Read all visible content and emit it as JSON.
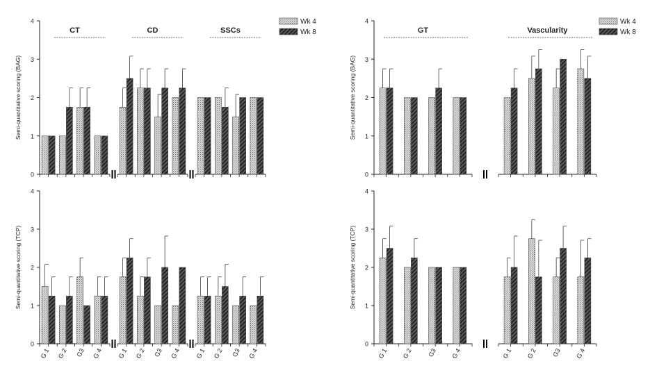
{
  "chart_data": [
    {
      "type": "bar",
      "ylabel": "Semi-quantitative scoring (BAG)",
      "ylim": [
        0,
        4
      ],
      "yticks": [
        "0",
        "1",
        "2",
        "3",
        "4"
      ],
      "groups": [
        {
          "label": "CT",
          "categories": [
            "G 1",
            "G 2",
            "G3",
            "G 4"
          ],
          "wk4": [
            1,
            1,
            1.75,
            1
          ],
          "wk4_err": [
            0,
            0,
            0.5,
            0
          ],
          "wk8": [
            1,
            1.75,
            1.75,
            1
          ],
          "wk8_err": [
            0,
            0.5,
            0.5,
            0
          ]
        },
        {
          "label": "CD",
          "categories": [
            "G 1",
            "G 2",
            "G3",
            "G 4"
          ],
          "wk4": [
            1.75,
            2.25,
            1.5,
            2
          ],
          "wk4_err": [
            0.5,
            0.5,
            0.58,
            0
          ],
          "wk8": [
            2.5,
            2.25,
            2.25,
            2.25
          ],
          "wk8_err": [
            0.58,
            0.5,
            0.5,
            0.5
          ]
        },
        {
          "label": "SSCs",
          "categories": [
            "G 1",
            "G 2",
            "G3",
            "G 4"
          ],
          "wk4": [
            2,
            2,
            1.5,
            2
          ],
          "wk4_err": [
            0,
            0,
            0.58,
            0
          ],
          "wk8": [
            2,
            1.75,
            2,
            2
          ],
          "wk8_err": [
            0,
            0.5,
            0,
            0
          ]
        }
      ],
      "legend": [
        "Wk 4",
        "Wk 8"
      ],
      "legend_position": "top-right"
    },
    {
      "type": "bar",
      "ylabel": "Semi-quantitative scoring (BAG)",
      "ylim": [
        0,
        4
      ],
      "yticks": [
        "0",
        "1",
        "2",
        "3",
        "4"
      ],
      "groups": [
        {
          "label": "GT",
          "categories": [
            "G 1",
            "G 2",
            "G3",
            "G 4"
          ],
          "wk4": [
            2.25,
            2,
            2,
            2
          ],
          "wk4_err": [
            0.5,
            0,
            0,
            0
          ],
          "wk8": [
            2.25,
            2,
            2.25,
            2
          ],
          "wk8_err": [
            0.5,
            0,
            0.5,
            0
          ]
        },
        {
          "label": "Vascularity",
          "categories": [
            "G 1",
            "G 2",
            "G3",
            "G 4"
          ],
          "wk4": [
            2,
            2.5,
            2.25,
            2.75
          ],
          "wk4_err": [
            0,
            0.58,
            0.5,
            0.5
          ],
          "wk8": [
            2.25,
            2.75,
            3,
            2.5
          ],
          "wk8_err": [
            0.5,
            0.5,
            0,
            0.58
          ]
        }
      ],
      "legend": [
        "Wk 4",
        "Wk 8"
      ],
      "legend_position": "top-right"
    },
    {
      "type": "bar",
      "ylabel": "Semi-quantitative scoring (TCP)",
      "ylim": [
        0,
        4
      ],
      "yticks": [
        "0",
        "1",
        "2",
        "3",
        "4"
      ],
      "groups": [
        {
          "label": "",
          "categories": [
            "G 1",
            "G 2",
            "G3",
            "G 4"
          ],
          "wk4": [
            1.5,
            1,
            1.75,
            1.25
          ],
          "wk4_err": [
            0.58,
            0,
            0.5,
            0.5
          ],
          "wk8": [
            1.25,
            1.25,
            1,
            1.25
          ],
          "wk8_err": [
            0.5,
            0.5,
            0,
            0.5
          ]
        },
        {
          "label": "",
          "categories": [
            "G 1",
            "G 2",
            "G3",
            "G 4"
          ],
          "wk4": [
            1.75,
            1.25,
            1,
            1
          ],
          "wk4_err": [
            0.5,
            0.5,
            0,
            0
          ],
          "wk8": [
            2.25,
            1.75,
            2,
            2
          ],
          "wk8_err": [
            0.5,
            0.5,
            0.82,
            0
          ]
        },
        {
          "label": "",
          "categories": [
            "G 1",
            "G 2",
            "G3",
            "G 4"
          ],
          "wk4": [
            1.25,
            1.25,
            1,
            1
          ],
          "wk4_err": [
            0.5,
            0.5,
            0,
            0
          ],
          "wk8": [
            1.25,
            1.5,
            1.25,
            1.25
          ],
          "wk8_err": [
            0.5,
            0.58,
            0.5,
            0.5
          ]
        }
      ]
    },
    {
      "type": "bar",
      "ylabel": "Semi-quantitative scoring (TCP)",
      "ylim": [
        0,
        4
      ],
      "yticks": [
        "0",
        "1",
        "2",
        "3",
        "4"
      ],
      "groups": [
        {
          "label": "",
          "categories": [
            "G 1",
            "G 2",
            "G3",
            "G 4"
          ],
          "wk4": [
            2.25,
            2,
            2,
            2
          ],
          "wk4_err": [
            0.5,
            0,
            0,
            0
          ],
          "wk8": [
            2.5,
            2.25,
            2,
            2
          ],
          "wk8_err": [
            0.58,
            0.5,
            0,
            0
          ]
        },
        {
          "label": "",
          "categories": [
            "G 1",
            "G 2",
            "G3",
            "G 4"
          ],
          "wk4": [
            1.75,
            2.75,
            1.75,
            1.75
          ],
          "wk4_err": [
            0.5,
            0.5,
            0.5,
            0.96
          ],
          "wk8": [
            2,
            1.75,
            2.5,
            2.25
          ],
          "wk8_err": [
            0.82,
            0.96,
            0.58,
            0.5
          ]
        }
      ]
    }
  ]
}
